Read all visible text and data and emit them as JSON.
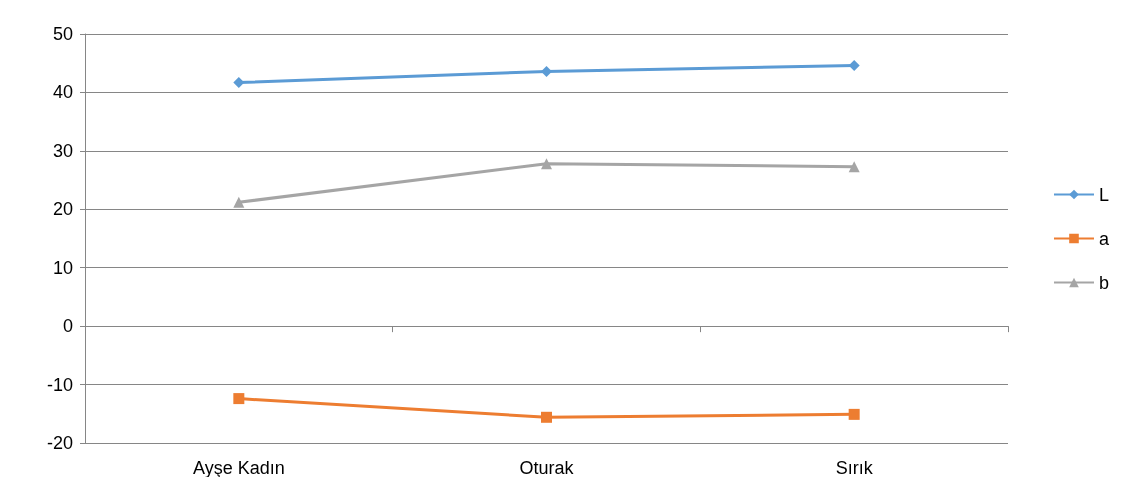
{
  "chart_data": {
    "type": "line",
    "categories": [
      "Ayşe Kadın",
      "Oturak",
      "Sırık"
    ],
    "series": [
      {
        "name": "L",
        "color": "#5b9bd5",
        "marker": "diamond",
        "values": [
          41.7,
          43.6,
          44.6
        ]
      },
      {
        "name": "a",
        "color": "#ed7d31",
        "marker": "square",
        "values": [
          -12.4,
          -15.6,
          -15.1
        ]
      },
      {
        "name": "b",
        "color": "#a5a5a5",
        "marker": "triangle",
        "values": [
          21.2,
          27.8,
          27.3
        ]
      }
    ],
    "ylim": [
      -20,
      50
    ],
    "yticks": [
      -20,
      -10,
      0,
      10,
      20,
      30,
      40,
      50
    ],
    "grid": "y",
    "legend": "right"
  }
}
